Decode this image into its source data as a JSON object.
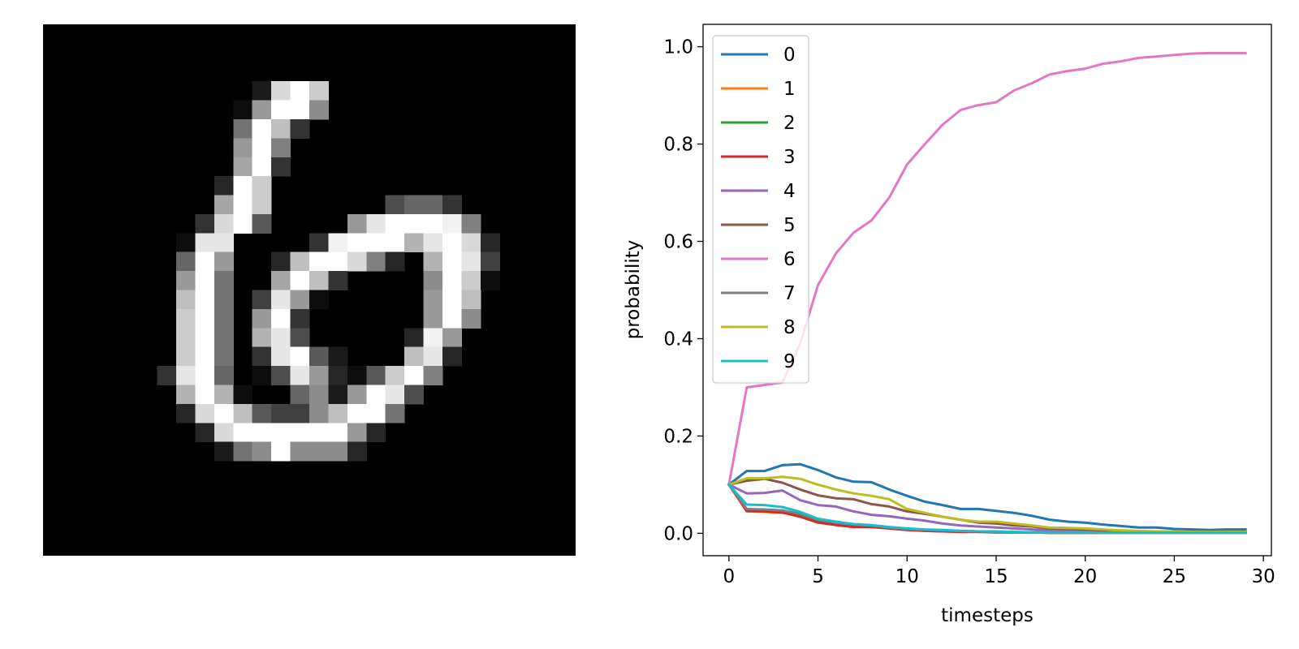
{
  "image": {
    "name": "digit-image",
    "grid": 28
  },
  "chart_data": {
    "type": "line",
    "title": "",
    "xlabel": "timesteps",
    "ylabel": "probability",
    "xlim": [
      -1.45,
      30.45
    ],
    "ylim": [
      -0.046,
      1.046
    ],
    "xticks": [
      0,
      5,
      10,
      15,
      20,
      25,
      30
    ],
    "xtick_labels": [
      "0",
      "5",
      "10",
      "15",
      "20",
      "25",
      "30"
    ],
    "yticks": [
      0.0,
      0.2,
      0.4,
      0.6,
      0.8,
      1.0
    ],
    "ytick_labels": [
      "0.0",
      "0.2",
      "0.4",
      "0.6",
      "0.8",
      "1.0"
    ],
    "grid": false,
    "legend_position": "top-left",
    "x": [
      0,
      1,
      2,
      3,
      4,
      5,
      6,
      7,
      8,
      9,
      10,
      11,
      12,
      13,
      14,
      15,
      16,
      17,
      18,
      19,
      20,
      21,
      22,
      23,
      24,
      25,
      26,
      27,
      28,
      29
    ],
    "series": [
      {
        "name": "0",
        "color": "#1f77b4",
        "values": [
          0.1,
          0.128,
          0.128,
          0.14,
          0.142,
          0.13,
          0.115,
          0.106,
          0.105,
          0.09,
          0.077,
          0.065,
          0.058,
          0.05,
          0.05,
          0.046,
          0.042,
          0.036,
          0.028,
          0.024,
          0.022,
          0.018,
          0.015,
          0.012,
          0.012,
          0.009,
          0.008,
          0.007,
          0.008,
          0.008
        ]
      },
      {
        "name": "1",
        "color": "#ff7f0e",
        "values": [
          0.1,
          0.045,
          0.044,
          0.042,
          0.036,
          0.024,
          0.018,
          0.014,
          0.013,
          0.01,
          0.007,
          0.005,
          0.004,
          0.003,
          0.003,
          0.002,
          0.002,
          0.002,
          0.001,
          0.001,
          0.001,
          0.001,
          0.001,
          0.001,
          0.001,
          0.001,
          0.001,
          0.001,
          0.001,
          0.001
        ]
      },
      {
        "name": "2",
        "color": "#2ca02c",
        "values": [
          0.1,
          0.048,
          0.047,
          0.044,
          0.038,
          0.026,
          0.02,
          0.016,
          0.014,
          0.011,
          0.008,
          0.006,
          0.005,
          0.004,
          0.003,
          0.003,
          0.002,
          0.002,
          0.001,
          0.001,
          0.001,
          0.001,
          0.001,
          0.001,
          0.001,
          0.001,
          0.001,
          0.001,
          0.001,
          0.001
        ]
      },
      {
        "name": "3",
        "color": "#d62728",
        "values": [
          0.1,
          0.046,
          0.045,
          0.043,
          0.034,
          0.022,
          0.017,
          0.013,
          0.013,
          0.01,
          0.007,
          0.005,
          0.004,
          0.003,
          0.003,
          0.002,
          0.002,
          0.002,
          0.001,
          0.001,
          0.001,
          0.001,
          0.001,
          0.001,
          0.001,
          0.001,
          0.001,
          0.001,
          0.001,
          0.001
        ]
      },
      {
        "name": "4",
        "color": "#9467bd",
        "values": [
          0.1,
          0.082,
          0.083,
          0.088,
          0.068,
          0.058,
          0.055,
          0.045,
          0.038,
          0.035,
          0.03,
          0.026,
          0.02,
          0.016,
          0.014,
          0.012,
          0.01,
          0.008,
          0.006,
          0.005,
          0.004,
          0.004,
          0.003,
          0.003,
          0.002,
          0.002,
          0.002,
          0.002,
          0.002,
          0.002
        ]
      },
      {
        "name": "5",
        "color": "#8c564b",
        "values": [
          0.1,
          0.108,
          0.112,
          0.104,
          0.09,
          0.078,
          0.072,
          0.07,
          0.06,
          0.055,
          0.045,
          0.04,
          0.034,
          0.028,
          0.022,
          0.02,
          0.016,
          0.014,
          0.01,
          0.009,
          0.008,
          0.006,
          0.005,
          0.004,
          0.004,
          0.003,
          0.003,
          0.003,
          0.003,
          0.003
        ]
      },
      {
        "name": "6",
        "color": "#e377c2",
        "values": [
          0.1,
          0.3,
          0.305,
          0.31,
          0.39,
          0.51,
          0.575,
          0.618,
          0.643,
          0.69,
          0.758,
          0.8,
          0.84,
          0.87,
          0.88,
          0.886,
          0.91,
          0.925,
          0.943,
          0.95,
          0.955,
          0.965,
          0.97,
          0.977,
          0.98,
          0.983,
          0.986,
          0.987,
          0.987,
          0.987
        ]
      },
      {
        "name": "7",
        "color": "#7f7f7f",
        "values": [
          0.1,
          0.05,
          0.049,
          0.047,
          0.04,
          0.028,
          0.022,
          0.018,
          0.016,
          0.012,
          0.009,
          0.007,
          0.006,
          0.005,
          0.004,
          0.003,
          0.003,
          0.002,
          0.002,
          0.002,
          0.001,
          0.001,
          0.001,
          0.001,
          0.001,
          0.001,
          0.001,
          0.001,
          0.001,
          0.001
        ]
      },
      {
        "name": "8",
        "color": "#bcbd22",
        "values": [
          0.1,
          0.113,
          0.113,
          0.116,
          0.112,
          0.1,
          0.09,
          0.082,
          0.077,
          0.07,
          0.05,
          0.042,
          0.034,
          0.028,
          0.024,
          0.024,
          0.02,
          0.016,
          0.012,
          0.011,
          0.01,
          0.008,
          0.006,
          0.005,
          0.004,
          0.004,
          0.003,
          0.003,
          0.003,
          0.003
        ]
      },
      {
        "name": "9",
        "color": "#17becf",
        "values": [
          0.1,
          0.059,
          0.058,
          0.054,
          0.044,
          0.03,
          0.024,
          0.019,
          0.017,
          0.013,
          0.01,
          0.008,
          0.007,
          0.005,
          0.004,
          0.004,
          0.003,
          0.002,
          0.002,
          0.002,
          0.002,
          0.001,
          0.001,
          0.001,
          0.001,
          0.001,
          0.001,
          0.001,
          0.001,
          0.001
        ]
      }
    ]
  }
}
